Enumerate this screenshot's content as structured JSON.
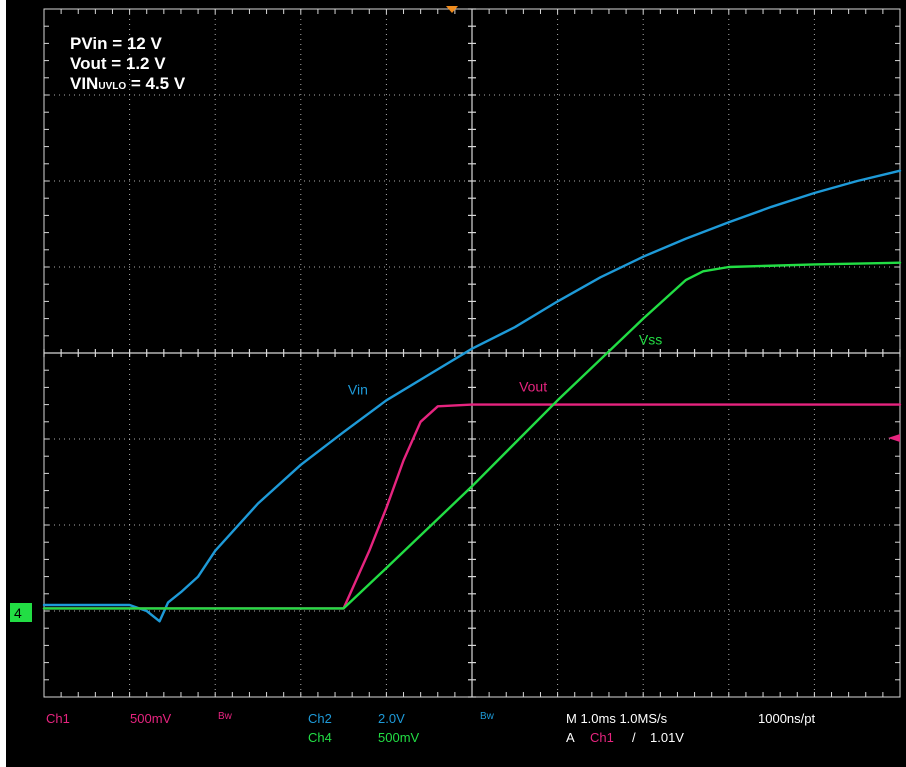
{
  "annotations": {
    "pvin": "PVin = 12 V",
    "vout": "Vout = 1.2 V",
    "vin_uvlo_prefix": "VIN",
    "vin_uvlo_sub": "UVLO",
    "vin_uvlo_suffix": " = 4.5 V"
  },
  "ground_marker": "4",
  "status_bar": {
    "ch1_name": "Ch1",
    "ch1_scale": "500mV",
    "ch1_bw": "Bw",
    "ch2_name": "Ch2",
    "ch2_scale": "2.0V",
    "ch2_bw": "Bw",
    "ch4_name": "Ch4",
    "ch4_scale": "500mV",
    "timebase": "M 1.0ms 1.0MS/s",
    "record": "1000ns/pt",
    "trigger_prefix": "A",
    "trigger_source": "Ch1",
    "trigger_slope": "/",
    "trigger_level": "1.01V"
  },
  "colors": {
    "background": "#000000",
    "grid": "#d8d8d8",
    "ch1": "#e6247f",
    "ch2": "#1e9ad8",
    "ch4": "#22dd44",
    "ground_marker": "#22dd44",
    "trigger_marker": "#f08c1e"
  },
  "chart_data": {
    "type": "line",
    "title": "",
    "xlabel": "",
    "ylabel": "",
    "x_unit": "ms",
    "y_unit": "div",
    "xlim": [
      0,
      10
    ],
    "ylim": [
      -4,
      4
    ],
    "grid": true,
    "grid_divisions": {
      "x": 10,
      "y": 8
    },
    "series": [
      {
        "name": "Vin",
        "channel": "Ch2",
        "scale": "2.0V",
        "color": "#1e9ad8",
        "points": [
          [
            0,
            -2.93
          ],
          [
            1.0,
            -2.93
          ],
          [
            1.2,
            -3.0
          ],
          [
            1.35,
            -3.12
          ],
          [
            1.45,
            -2.9
          ],
          [
            1.6,
            -2.78
          ],
          [
            1.8,
            -2.6
          ],
          [
            2.0,
            -2.3
          ],
          [
            2.5,
            -1.75
          ],
          [
            3.0,
            -1.3
          ],
          [
            3.5,
            -0.92
          ],
          [
            4.0,
            -0.55
          ],
          [
            4.5,
            -0.25
          ],
          [
            5.0,
            0.05
          ],
          [
            5.5,
            0.3
          ],
          [
            6.0,
            0.6
          ],
          [
            6.5,
            0.88
          ],
          [
            7.0,
            1.12
          ],
          [
            7.5,
            1.33
          ],
          [
            8.0,
            1.52
          ],
          [
            8.5,
            1.7
          ],
          [
            9.0,
            1.86
          ],
          [
            9.5,
            2.0
          ],
          [
            10.0,
            2.12
          ]
        ]
      },
      {
        "name": "Vout",
        "channel": "Ch1",
        "scale": "500mV",
        "color": "#e6247f",
        "points": [
          [
            0,
            -2.97
          ],
          [
            3.5,
            -2.97
          ],
          [
            3.8,
            -2.3
          ],
          [
            4.0,
            -1.8
          ],
          [
            4.2,
            -1.25
          ],
          [
            4.4,
            -0.8
          ],
          [
            4.6,
            -0.62
          ],
          [
            5.0,
            -0.6
          ],
          [
            6.0,
            -0.6
          ],
          [
            8.0,
            -0.6
          ],
          [
            10.0,
            -0.6
          ]
        ]
      },
      {
        "name": "Vss",
        "channel": "Ch4",
        "scale": "500mV",
        "color": "#22dd44",
        "points": [
          [
            0,
            -2.97
          ],
          [
            3.5,
            -2.97
          ],
          [
            4.0,
            -2.5
          ],
          [
            5.0,
            -1.55
          ],
          [
            6.0,
            -0.55
          ],
          [
            7.0,
            0.4
          ],
          [
            7.5,
            0.85
          ],
          [
            7.7,
            0.95
          ],
          [
            8.0,
            1.0
          ],
          [
            9.0,
            1.03
          ],
          [
            10.0,
            1.05
          ]
        ]
      }
    ],
    "labels": [
      {
        "text": "Vin",
        "color": "#1e9ad8",
        "x": 3.55,
        "y": -0.48
      },
      {
        "text": "Vout",
        "color": "#e6247f",
        "x": 5.55,
        "y": -0.45
      },
      {
        "text": "Vss",
        "color": "#22dd44",
        "x": 6.95,
        "y": 0.1
      }
    ],
    "trigger_position_x": 10.0,
    "trigger_level_y": -0.97,
    "center_trigger_x": 5.0
  }
}
